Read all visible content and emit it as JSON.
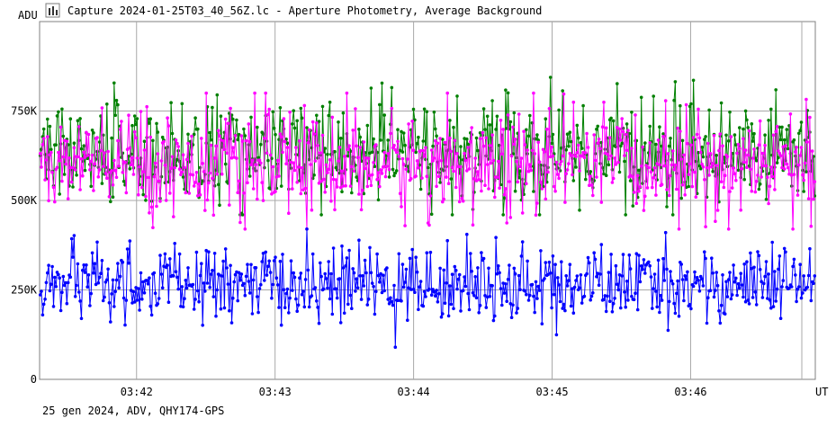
{
  "window": {
    "title": "Capture 2024-01-25T03_40_56Z.lc - Aperture Photometry, Average Background",
    "icon": "chart-icon"
  },
  "footer": {
    "text": "25 gen 2024, ADV, QHY174-GPS"
  },
  "chart_data": {
    "type": "line",
    "title": "Capture 2024-01-25T03_40_56Z.lc - Aperture Photometry, Average Background",
    "ylabel": "ADU",
    "xlabel": "UT",
    "ylim": [
      0,
      1000000
    ],
    "xlim": [
      "03:41:18",
      "03:46:54"
    ],
    "yticks": [
      {
        "value": 0,
        "label": "0"
      },
      {
        "value": 250000,
        "label": "250K"
      },
      {
        "value": 500000,
        "label": "500K"
      },
      {
        "value": 750000,
        "label": "750K"
      }
    ],
    "xticks": [
      {
        "value": "03:42",
        "label": "03:42"
      },
      {
        "value": "03:43",
        "label": "03:43"
      },
      {
        "value": "03:44",
        "label": "03:44"
      },
      {
        "value": "03:45",
        "label": "03:45"
      },
      {
        "value": "03:46",
        "label": "03:46"
      }
    ],
    "grid": true,
    "series": [
      {
        "color": "#008000",
        "mean": 635000,
        "spread": 75000,
        "range": [
          460000,
          890000
        ],
        "points": 640
      },
      {
        "color": "#ff00ff",
        "mean": 600000,
        "spread": 70000,
        "range": [
          420000,
          800000
        ],
        "points": 640
      },
      {
        "color": "#0000ff",
        "mean": 265000,
        "spread": 50000,
        "range": [
          50000,
          420000
        ],
        "points": 640
      }
    ]
  }
}
